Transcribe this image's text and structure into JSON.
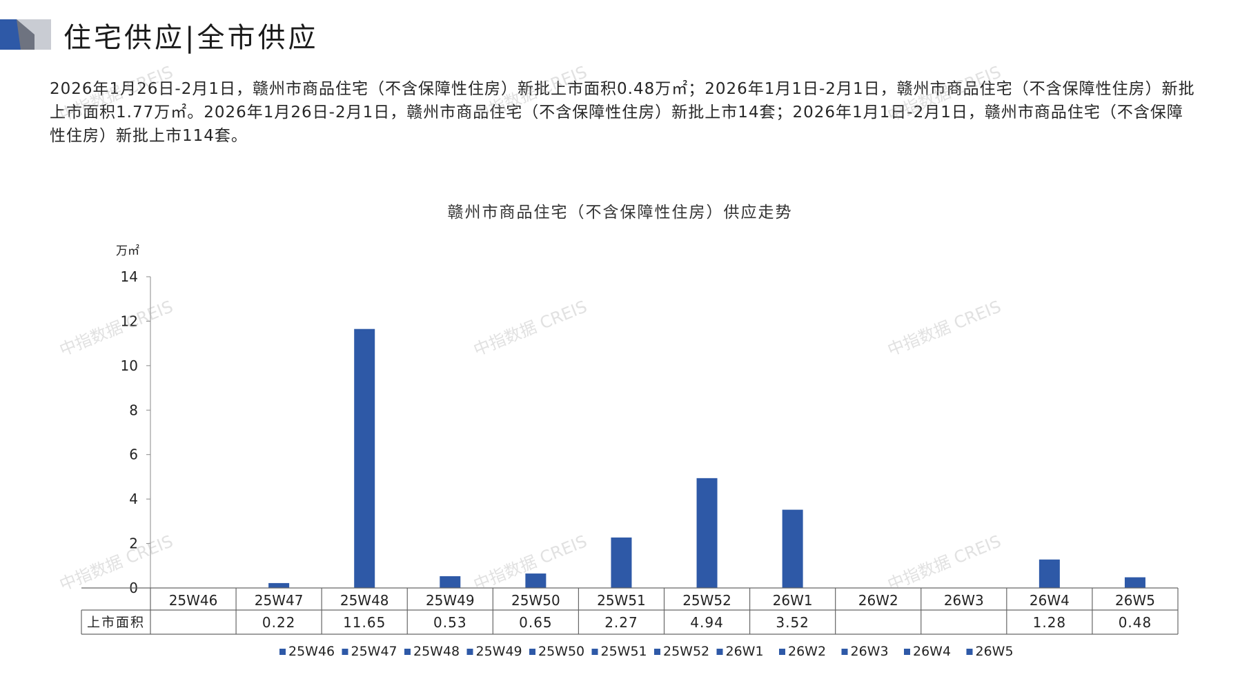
{
  "header": {
    "title": "住宅供应|全市供应"
  },
  "summary": {
    "text": "2026年1月26日-2月1日，赣州市商品住宅（不含保障性住房）新批上市面积0.48万㎡；2026年1月1日-2月1日，赣州市商品住宅（不含保障性住房）新批上市面积1.77万㎡。2026年1月26日-2月1日，赣州市商品住宅（不含保障性住房）新批上市14套；2026年1月1日-2月1日，赣州市商品住宅（不含保障性住房）新批上市114套。"
  },
  "watermark": {
    "text": "中指数据 CREIS"
  },
  "colors": {
    "bar": "#2E59A7",
    "deco_blue": "#2E59A7",
    "deco_gray": "#9EA3AE"
  },
  "chart_data": {
    "type": "bar",
    "title": "赣州市商品住宅（不含保障性住房）供应走势",
    "ylabel": "万㎡",
    "ylim": [
      0,
      14
    ],
    "yticks": [
      0,
      2,
      4,
      6,
      8,
      10,
      12,
      14
    ],
    "categories": [
      "25W46",
      "25W47",
      "25W48",
      "25W49",
      "25W50",
      "25W51",
      "25W52",
      "26W1",
      "26W2",
      "26W3",
      "26W4",
      "26W5"
    ],
    "series": [
      {
        "name": "上市面积",
        "values": [
          null,
          0.22,
          11.65,
          0.53,
          0.65,
          2.27,
          4.94,
          3.52,
          null,
          null,
          1.28,
          0.48
        ],
        "labels": [
          "",
          "0.22",
          "11.65",
          "0.53",
          "0.65",
          "2.27",
          "4.94",
          "3.52",
          "",
          "",
          "1.28",
          "0.48"
        ]
      }
    ],
    "legend": [
      "25W46",
      "25W47",
      "25W48",
      "25W49",
      "25W50",
      "25W51",
      "25W52",
      "26W1",
      "26W2",
      "26W3",
      "26W4",
      "26W5"
    ],
    "legend_position": "bottom",
    "data_table": true,
    "grid": false
  }
}
